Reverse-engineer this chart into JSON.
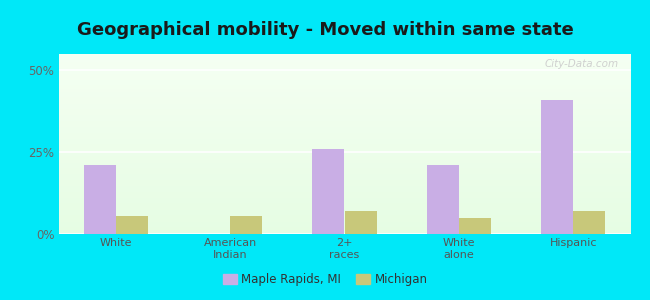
{
  "title": "Geographical mobility - Moved within same state",
  "categories": [
    "White",
    "American\nIndian",
    "2+\nraces",
    "White\nalone",
    "Hispanic"
  ],
  "maple_rapids": [
    21.0,
    0.0,
    26.0,
    21.0,
    41.0
  ],
  "michigan": [
    5.5,
    5.5,
    7.0,
    5.0,
    7.0
  ],
  "maple_color": "#c9aee5",
  "michigan_color": "#c8c87a",
  "background_outer": "#00e8f8",
  "title_fontsize": 13,
  "legend_label_1": "Maple Rapids, MI",
  "legend_label_2": "Michigan",
  "ylim": [
    0,
    55
  ],
  "yticks": [
    0,
    25,
    50
  ],
  "ytick_labels": [
    "0%",
    "25%",
    "50%"
  ],
  "bar_width": 0.28,
  "watermark": "City-Data.com"
}
